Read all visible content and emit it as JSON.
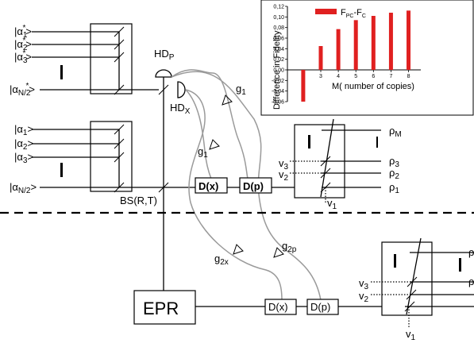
{
  "colors": {
    "bar": "#e02020",
    "signal_path": "#9a9a9a",
    "line": "#000000"
  },
  "inputs_conjugate": [
    {
      "base": "|α",
      "sub": "1",
      "sup": "*",
      "close": ">"
    },
    {
      "base": "|α",
      "sub": "2",
      "sup": "*",
      "close": ">"
    },
    {
      "base": "|α",
      "sub": "3",
      "sup": "*",
      "close": ">"
    },
    {
      "base": "|α",
      "sub": "N/2",
      "sup": "*",
      "close": ">"
    }
  ],
  "inputs_plain": [
    {
      "base": "|α",
      "sub": "1",
      "close": ">"
    },
    {
      "base": "|α",
      "sub": "2",
      "close": ">"
    },
    {
      "base": "|α",
      "sub": "3",
      "close": ">"
    },
    {
      "base": "|α",
      "sub": "N/2",
      "close": ">"
    }
  ],
  "labels": {
    "hdp": {
      "base": "HD",
      "sub": "P"
    },
    "hdx": {
      "base": "HD",
      "sub": "X"
    },
    "g1_upper": {
      "base": "g",
      "sub": "1"
    },
    "g1_lower": {
      "base": "g",
      "sub": "1"
    },
    "bs": "BS(R,T)",
    "dx_top": "D(x)",
    "dp_top": "D(p)",
    "dx_bottom": "D(x)",
    "dp_bottom": "D(p)",
    "epr": "EPR",
    "g2x": {
      "base": "g",
      "sub": "2x"
    },
    "g2p": {
      "base": "g",
      "sub": "2p"
    }
  },
  "outputs_top": [
    {
      "base": "ρ",
      "sub": "M"
    },
    {
      "base": "ρ",
      "sub": "3"
    },
    {
      "base": "ρ",
      "sub": "2"
    },
    {
      "base": "ρ",
      "sub": "1"
    }
  ],
  "vacuum_top": [
    {
      "base": "v",
      "sub": "3"
    },
    {
      "base": "v",
      "sub": "2"
    },
    {
      "base": "v",
      "sub": "1"
    }
  ],
  "outputs_bottom_partial": [
    "ρ",
    "ρ",
    "",
    ""
  ],
  "vacuum_bottom": [
    {
      "base": "v",
      "sub": "3"
    },
    {
      "base": "v",
      "sub": "2"
    },
    {
      "base": "v",
      "sub": "1"
    }
  ],
  "chart_data": {
    "type": "bar",
    "x": [
      2,
      3,
      4,
      5,
      6,
      7,
      8
    ],
    "values": [
      -0.06,
      0.045,
      0.077,
      0.094,
      0.102,
      0.108,
      0.112
    ],
    "xlabel": "M( number of copies)",
    "ylabel": "Difference in Fidelity",
    "ylim": [
      -0.06,
      0.12
    ],
    "yticks": [
      "0,12",
      "0,10",
      "0,08",
      "0,06",
      "0,04",
      "0,02",
      "0,00",
      "-0,02",
      "-0,04",
      "-0,06"
    ],
    "yticks_values": [
      0.12,
      0.1,
      0.08,
      0.06,
      0.04,
      0.02,
      0.0,
      -0.02,
      -0.04,
      -0.06
    ],
    "xticks": [
      "2",
      "3",
      "4",
      "5",
      "6",
      "7",
      "8"
    ],
    "legend": {
      "base": "F",
      "sub1": "PC",
      "mid": "-F",
      "sub2": "C",
      "position": "top-left"
    }
  }
}
